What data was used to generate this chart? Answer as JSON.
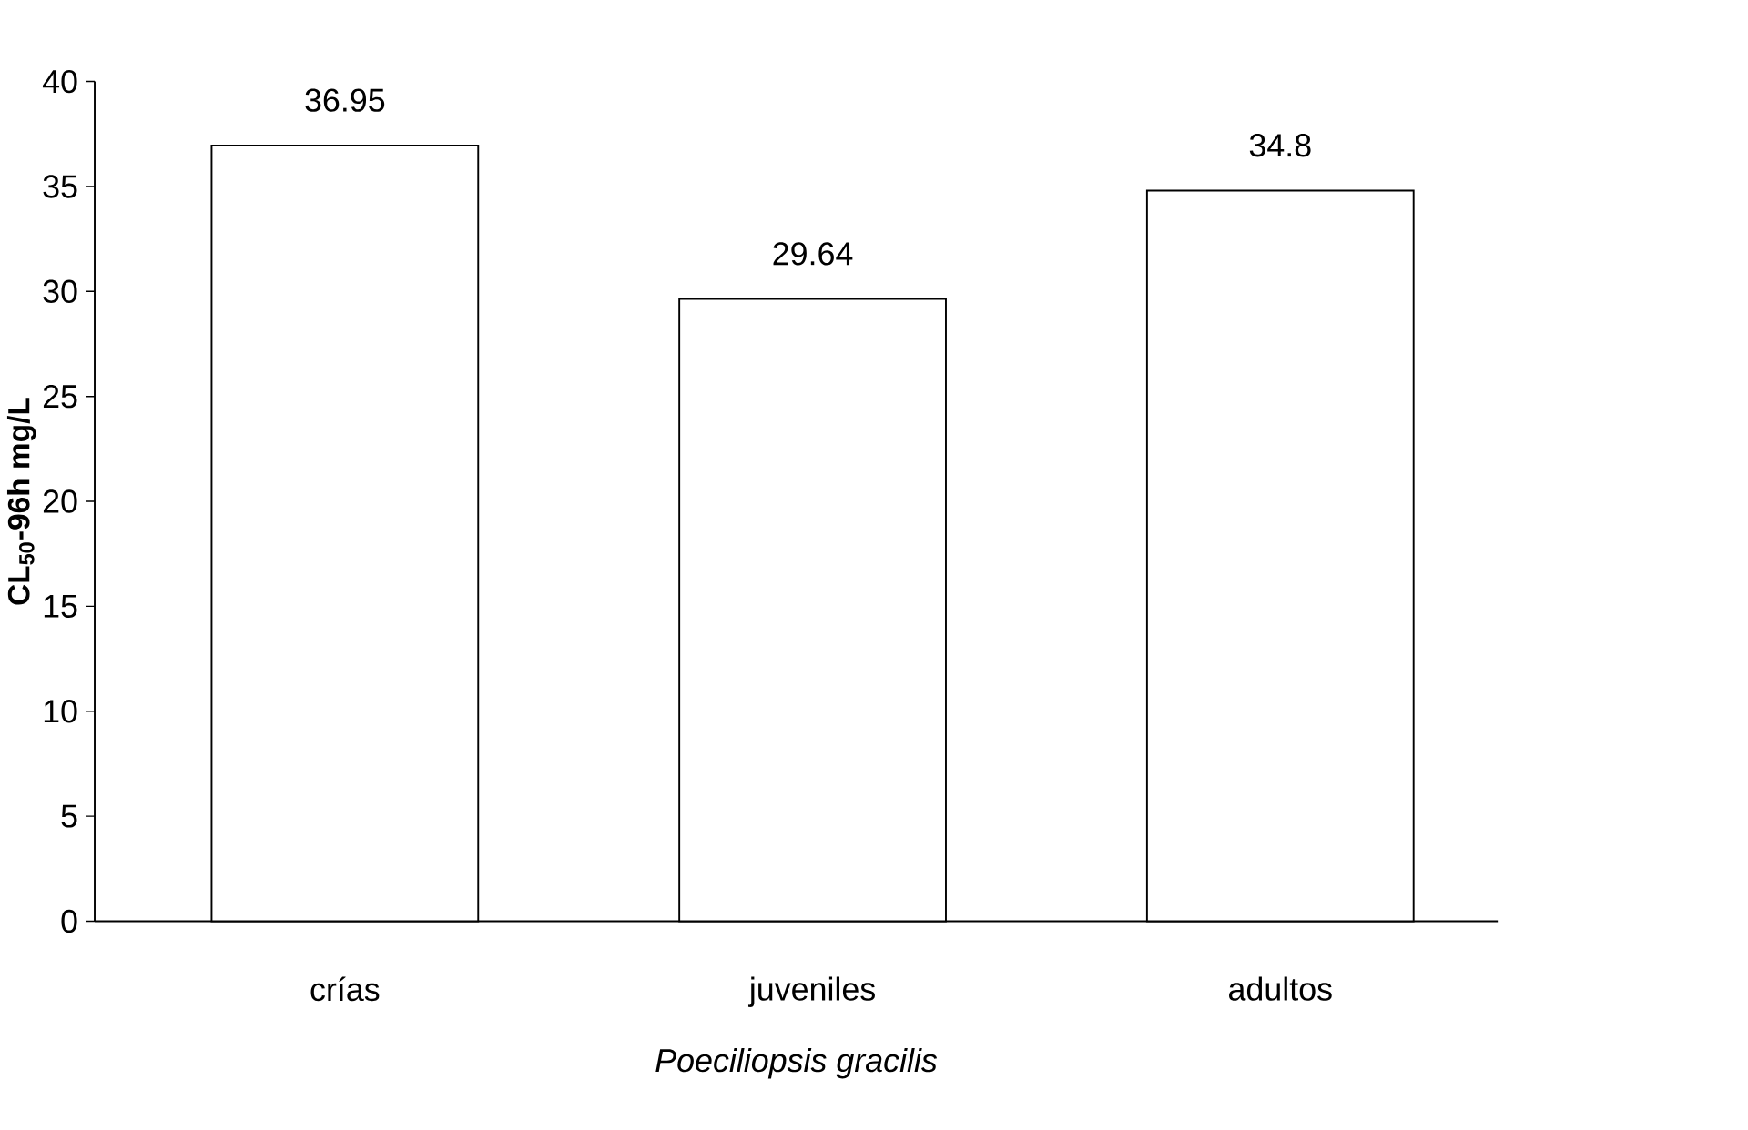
{
  "chart_data": {
    "type": "bar",
    "xlabel": "Poeciliopsis gracilis",
    "ylabel": "CL$_{50}$-96h mg/L",
    "categories": [
      "crías",
      "juveniles",
      "adultos"
    ],
    "values": [
      36.95,
      29.64,
      34.8
    ],
    "color": "#ffffff",
    "ylim": [
      0,
      40
    ],
    "yticks": [
      0,
      5,
      10,
      15,
      20,
      25,
      30,
      35,
      40
    ],
    "data_labels": true
  }
}
